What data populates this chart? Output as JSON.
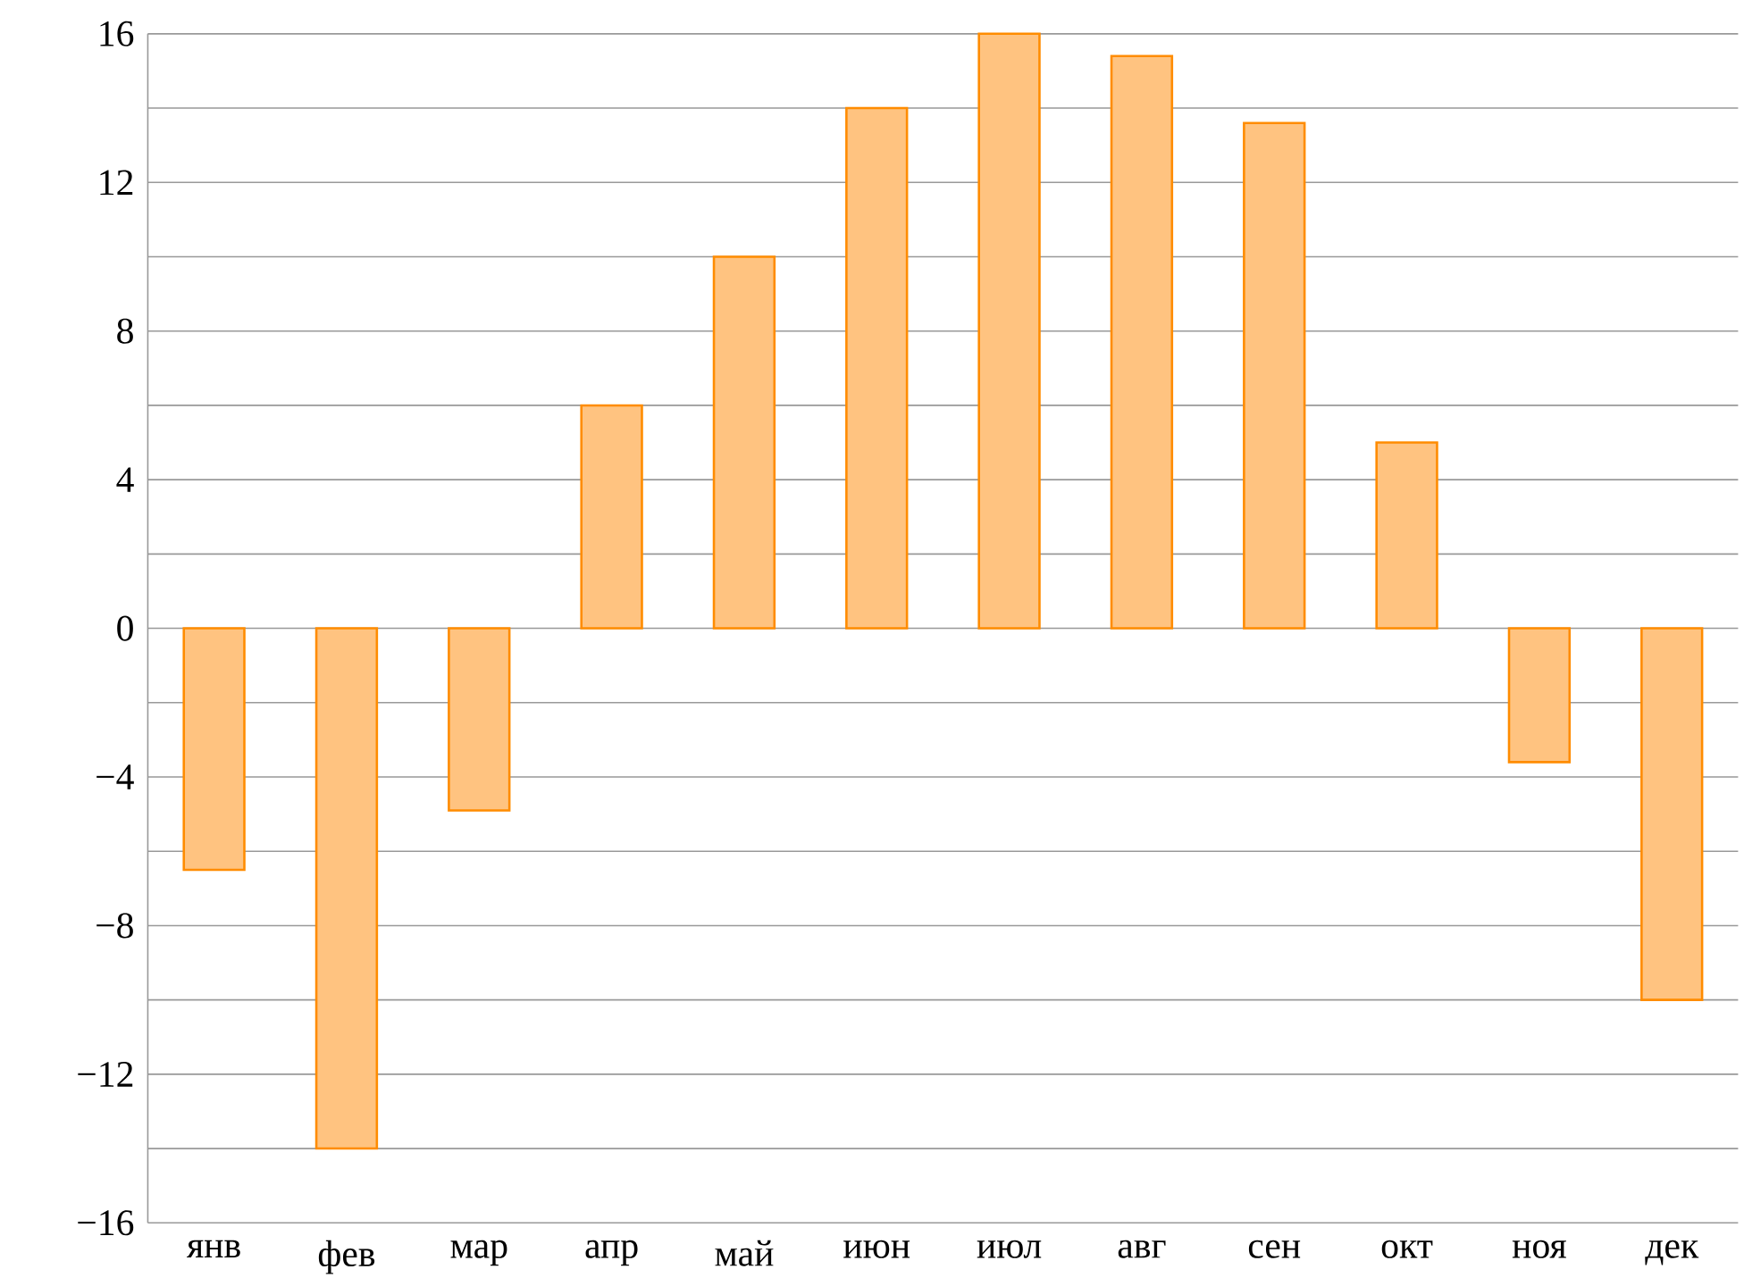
{
  "chart_data": {
    "type": "bar",
    "categories": [
      "янв",
      "фев",
      "мар",
      "апр",
      "май",
      "июн",
      "июл",
      "авг",
      "сен",
      "окт",
      "ноя",
      "дек"
    ],
    "values": [
      -6.5,
      -14,
      -4.9,
      6,
      10,
      14,
      16,
      15.4,
      13.6,
      5,
      -3.6,
      -10
    ],
    "color": "#ffc380",
    "ylim": [
      -16,
      16
    ],
    "yticks": [
      {
        "value": -16,
        "label": "−16"
      },
      {
        "value": -14,
        "label": null
      },
      {
        "value": -12,
        "label": "−12"
      },
      {
        "value": -10,
        "label": null
      },
      {
        "value": -8,
        "label": "−8"
      },
      {
        "value": -6,
        "label": null
      },
      {
        "value": -4,
        "label": "−4"
      },
      {
        "value": -2,
        "label": null
      },
      0,
      {
        "value": 2,
        "label": null
      },
      4,
      {
        "value": 6,
        "label": null
      },
      8,
      {
        "value": 10,
        "label": null
      },
      12,
      {
        "value": 14,
        "label": null
      },
      16
    ],
    "grid": "y"
  }
}
